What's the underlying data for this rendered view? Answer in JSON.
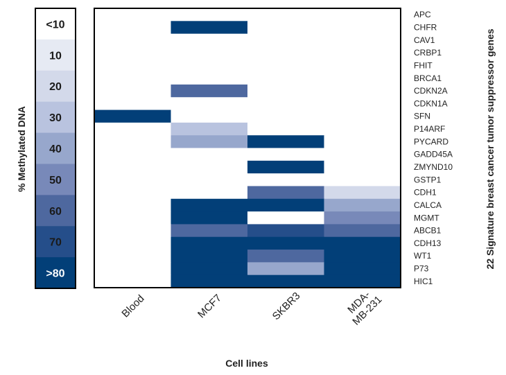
{
  "chart_data": {
    "type": "heatmap",
    "xlabel": "Cell lines",
    "ylabel": "22 Signature breast cancer tumor suppressor genes",
    "legend_title": "% Methylated DNA",
    "categories": [
      "Blood",
      "MCF7",
      "SKBR3",
      "MDA-MB-231"
    ],
    "genes": [
      "APC",
      "CHFR",
      "CAV1",
      "CRBP1",
      "FHIT",
      "BRCA1",
      "CDKN2A",
      "CDKN1A",
      "SFN",
      "P14ARF",
      "PYCARD",
      "GADD45A",
      "ZMYND10",
      "GSTP1",
      "CDH1",
      "CALCA",
      "MGMT",
      "ABCB1",
      "CDH13",
      "WT1",
      "P73",
      "HIC1"
    ],
    "legend_levels": [
      {
        "label": "<10",
        "color": "#ffffff",
        "text_color": "#1a1a1a"
      },
      {
        "label": "10",
        "color": "#e6eaf3",
        "text_color": "#1a1a1a"
      },
      {
        "label": "20",
        "color": "#d3d9ea",
        "text_color": "#1a1a1a"
      },
      {
        "label": "30",
        "color": "#b9c3df",
        "text_color": "#1a1a1a"
      },
      {
        "label": "40",
        "color": "#97a7cc",
        "text_color": "#1a1a1a"
      },
      {
        "label": "50",
        "color": "#7889b9",
        "text_color": "#1a1a1a"
      },
      {
        "label": "60",
        "color": "#4e689f",
        "text_color": "#1a1a1a"
      },
      {
        "label": "70",
        "color": "#254e8a",
        "text_color": "#1a1a1a"
      },
      {
        "label": ">80",
        "color": "#023f78",
        "text_color": "#ffffff"
      }
    ],
    "values": [
      [
        0,
        0,
        0,
        0
      ],
      [
        0,
        80,
        0,
        0
      ],
      [
        0,
        0,
        0,
        0
      ],
      [
        0,
        0,
        0,
        0
      ],
      [
        0,
        0,
        0,
        0
      ],
      [
        0,
        0,
        0,
        0
      ],
      [
        0,
        60,
        0,
        0
      ],
      [
        0,
        0,
        0,
        0
      ],
      [
        80,
        0,
        0,
        0
      ],
      [
        0,
        30,
        0,
        0
      ],
      [
        0,
        40,
        80,
        0
      ],
      [
        0,
        0,
        0,
        0
      ],
      [
        0,
        0,
        80,
        0
      ],
      [
        0,
        0,
        0,
        0
      ],
      [
        0,
        0,
        60,
        20
      ],
      [
        0,
        80,
        80,
        40
      ],
      [
        0,
        80,
        0,
        50
      ],
      [
        0,
        60,
        70,
        60
      ],
      [
        0,
        80,
        80,
        80
      ],
      [
        0,
        80,
        60,
        80
      ],
      [
        0,
        80,
        40,
        80
      ],
      [
        0,
        80,
        80,
        80
      ]
    ]
  }
}
